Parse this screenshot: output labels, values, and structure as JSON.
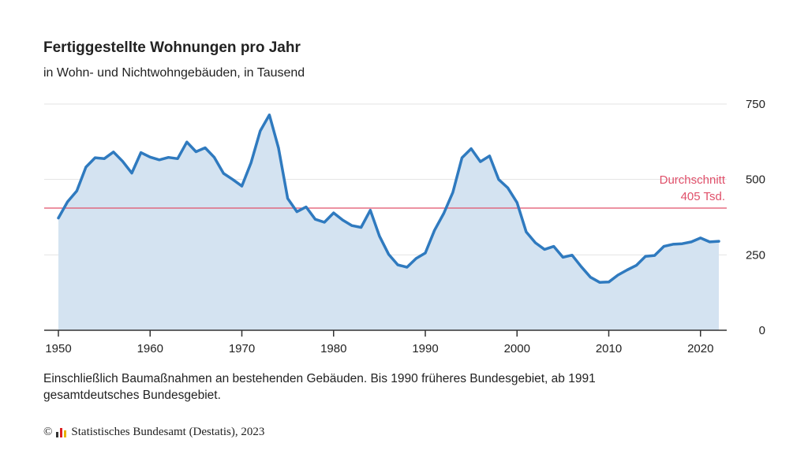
{
  "chart_data": {
    "type": "area",
    "title": "Fertiggestellte Wohnungen pro Jahr",
    "subtitle": "in Wohn- und Nichtwohngebäuden, in Tausend",
    "xlim": [
      1950,
      2022
    ],
    "ylim": [
      0,
      750
    ],
    "x_ticks": [
      1950,
      1960,
      1970,
      1980,
      1990,
      2000,
      2010,
      2020
    ],
    "y_ticks": [
      0,
      250,
      500,
      750
    ],
    "x": [
      1950,
      1951,
      1952,
      1953,
      1954,
      1955,
      1956,
      1957,
      1958,
      1959,
      1960,
      1961,
      1962,
      1963,
      1964,
      1965,
      1966,
      1967,
      1968,
      1969,
      1970,
      1971,
      1972,
      1973,
      1974,
      1975,
      1976,
      1977,
      1978,
      1979,
      1980,
      1981,
      1982,
      1983,
      1984,
      1985,
      1986,
      1987,
      1988,
      1989,
      1990,
      1991,
      1992,
      1993,
      1994,
      1995,
      1996,
      1997,
      1998,
      1999,
      2000,
      2001,
      2002,
      2003,
      2004,
      2005,
      2006,
      2007,
      2008,
      2009,
      2010,
      2011,
      2012,
      2013,
      2014,
      2015,
      2016,
      2017,
      2018,
      2019,
      2020,
      2021,
      2022
    ],
    "series": [
      {
        "values": [
          372,
          426,
          462,
          541,
          572,
          569,
          591,
          560,
          521,
          589,
          574,
          565,
          573,
          569,
          624,
          592,
          605,
          573,
          520,
          500,
          478,
          555,
          661,
          714,
          604,
          437,
          393,
          409,
          368,
          358,
          389,
          365,
          347,
          341,
          398,
          312,
          252,
          217,
          209,
          238,
          256,
          331,
          387,
          457,
          572,
          602,
          559,
          578,
          500,
          472,
          423,
          326,
          290,
          268,
          278,
          242,
          249,
          211,
          176,
          159,
          160,
          183,
          200,
          215,
          245,
          248,
          278,
          285,
          287,
          293,
          306,
          293,
          295
        ],
        "color": "#2f7abf",
        "fill": "#d4e3f1"
      }
    ],
    "average": {
      "value": 405,
      "label_line1": "Durchschnitt",
      "label_line2": "405 Tsd.",
      "color": "#e0506a"
    },
    "grid": true,
    "y_axis_side": "right"
  },
  "note": "Einschließlich Baumaßnahmen an bestehenden Gebäuden. Bis 1990 früheres Bundesgebiet, ab 1991 gesamtdeutsches Bundesgebiet.",
  "source": "Statistisches Bundesamt (Destatis), 2023",
  "copyright_symbol": "©",
  "colors": {
    "line": "#2f7abf",
    "area": "#d4e3f1",
    "average": "#e0506a",
    "grid": "#e3e3e3",
    "axis": "#333333"
  }
}
